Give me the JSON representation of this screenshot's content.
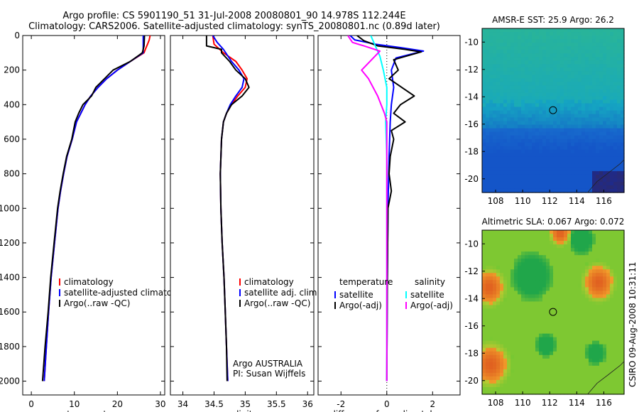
{
  "figure": {
    "title_line1": "Argo profile: CS 5901190_51 31-Jul-2008 20080801_90 14.978S 112.244E",
    "title_line2": "Climatology: CARS2006. Satellite-adjusted climatology: synTS_20080801.nc (0.89d later)",
    "side_text": "CSIRO 09-Aug-2008 10:31:11"
  },
  "chart_data": [
    {
      "id": "temperature-profile",
      "type": "line",
      "xlabel": "temperature",
      "ylabel": "",
      "xlim": [
        -2,
        31
      ],
      "ylim": [
        2080,
        0
      ],
      "y_reversed": true,
      "xticks": [
        0,
        10,
        20,
        30
      ],
      "yticks": [
        0,
        200,
        400,
        600,
        800,
        1000,
        1200,
        1400,
        1600,
        1800,
        2000
      ],
      "grid": false,
      "legend": {
        "position": "lower-right",
        "entries": [
          "climatology",
          "satellite-adjusted climatology",
          "Argo(..raw -QC)"
        ]
      },
      "series": [
        {
          "name": "climatology",
          "color": "#ff0000",
          "points": [
            [
              27.6,
              0
            ],
            [
              27.4,
              25
            ],
            [
              27.0,
              50
            ],
            [
              26.5,
              80
            ],
            [
              26.2,
              100
            ],
            [
              23,
              150
            ],
            [
              20,
              200
            ],
            [
              17.5,
              250
            ],
            [
              15.5,
              300
            ],
            [
              13.8,
              350
            ],
            [
              12.5,
              400
            ],
            [
              11.5,
              450
            ],
            [
              10.5,
              500
            ],
            [
              9.5,
              600
            ],
            [
              8.3,
              700
            ],
            [
              7.5,
              800
            ],
            [
              6.8,
              900
            ],
            [
              6.2,
              1000
            ],
            [
              5.4,
              1200
            ],
            [
              4.6,
              1400
            ],
            [
              4.0,
              1600
            ],
            [
              3.5,
              1800
            ],
            [
              3.0,
              2000
            ]
          ]
        },
        {
          "name": "satellite-adjusted climatology",
          "color": "#0000ff",
          "points": [
            [
              26.0,
              0
            ],
            [
              26.0,
              50
            ],
            [
              26.0,
              100
            ],
            [
              23,
              150
            ],
            [
              20,
              200
            ],
            [
              17.5,
              250
            ],
            [
              15.5,
              300
            ],
            [
              13.8,
              350
            ],
            [
              12.5,
              400
            ],
            [
              11.5,
              450
            ],
            [
              10.5,
              500
            ],
            [
              9.5,
              600
            ],
            [
              8.3,
              700
            ],
            [
              7.5,
              800
            ],
            [
              6.8,
              900
            ],
            [
              6.2,
              1000
            ],
            [
              5.4,
              1200
            ],
            [
              4.6,
              1400
            ],
            [
              4.0,
              1600
            ],
            [
              3.5,
              1800
            ],
            [
              3.0,
              2000
            ]
          ]
        },
        {
          "name": "Argo(..raw -QC)",
          "color": "#000000",
          "points": [
            [
              26.3,
              0
            ],
            [
              26.2,
              60
            ],
            [
              25.8,
              100
            ],
            [
              23,
              150
            ],
            [
              19,
              200
            ],
            [
              17,
              250
            ],
            [
              15,
              300
            ],
            [
              14,
              350
            ],
            [
              12,
              400
            ],
            [
              11,
              450
            ],
            [
              10.2,
              500
            ],
            [
              9.4,
              600
            ],
            [
              8.2,
              700
            ],
            [
              7.4,
              800
            ],
            [
              6.7,
              900
            ],
            [
              6.1,
              1000
            ],
            [
              5.3,
              1200
            ],
            [
              4.5,
              1400
            ],
            [
              3.9,
              1600
            ],
            [
              3.2,
              1800
            ],
            [
              2.6,
              2000
            ]
          ]
        }
      ]
    },
    {
      "id": "salinity-profile",
      "type": "line",
      "xlabel": "salinity",
      "ylabel": "",
      "xlim": [
        33.8,
        36.1
      ],
      "ylim": [
        2080,
        0
      ],
      "y_reversed": true,
      "xticks": [
        34,
        34.5,
        35,
        35.5,
        36
      ],
      "yticks": [
        0,
        200,
        400,
        600,
        800,
        1000,
        1200,
        1400,
        1600,
        1800,
        2000
      ],
      "grid": false,
      "legend": {
        "position": "lower-right",
        "entries": [
          "climatology",
          "satellite adj. clim.",
          "Argo(..raw -QC)"
        ]
      },
      "annotation": [
        "Argo AUSTRALIA",
        "PI: Susan Wijffels"
      ],
      "series": [
        {
          "name": "climatology",
          "color": "#ff0000",
          "points": [
            [
              34.48,
              0
            ],
            [
              34.5,
              50
            ],
            [
              34.65,
              100
            ],
            [
              34.85,
              150
            ],
            [
              34.95,
              200
            ],
            [
              35.03,
              250
            ],
            [
              35.0,
              300
            ],
            [
              34.88,
              350
            ],
            [
              34.78,
              400
            ],
            [
              34.7,
              450
            ],
            [
              34.65,
              500
            ],
            [
              34.62,
              600
            ],
            [
              34.6,
              800
            ],
            [
              34.61,
              1000
            ],
            [
              34.63,
              1200
            ],
            [
              34.66,
              1400
            ],
            [
              34.68,
              1600
            ],
            [
              34.7,
              1800
            ],
            [
              34.72,
              2000
            ]
          ]
        },
        {
          "name": "satellite adj. clim.",
          "color": "#0000ff",
          "points": [
            [
              34.48,
              0
            ],
            [
              34.55,
              40
            ],
            [
              34.65,
              80
            ],
            [
              34.78,
              150
            ],
            [
              34.9,
              200
            ],
            [
              34.98,
              250
            ],
            [
              34.95,
              300
            ],
            [
              34.85,
              350
            ],
            [
              34.76,
              400
            ],
            [
              34.7,
              450
            ],
            [
              34.65,
              500
            ],
            [
              34.62,
              600
            ],
            [
              34.6,
              800
            ],
            [
              34.61,
              1000
            ],
            [
              34.63,
              1200
            ],
            [
              34.66,
              1400
            ],
            [
              34.68,
              1600
            ],
            [
              34.7,
              1800
            ],
            [
              34.72,
              2000
            ]
          ]
        },
        {
          "name": "Argo(..raw -QC)",
          "color": "#000000",
          "points": [
            [
              34.38,
              0
            ],
            [
              34.38,
              60
            ],
            [
              34.62,
              80
            ],
            [
              34.62,
              100
            ],
            [
              34.75,
              150
            ],
            [
              34.85,
              200
            ],
            [
              35.0,
              250
            ],
            [
              35.06,
              300
            ],
            [
              34.95,
              350
            ],
            [
              34.78,
              400
            ],
            [
              34.7,
              450
            ],
            [
              34.65,
              500
            ],
            [
              34.62,
              600
            ],
            [
              34.6,
              800
            ],
            [
              34.61,
              1000
            ],
            [
              34.63,
              1200
            ],
            [
              34.66,
              1400
            ],
            [
              34.68,
              1600
            ],
            [
              34.7,
              1800
            ],
            [
              34.71,
              2000
            ]
          ]
        }
      ]
    },
    {
      "id": "difference-profile",
      "type": "line",
      "xlabel": "difference from climatology",
      "ylabel": "",
      "xlim": [
        -3,
        3.2
      ],
      "ylim": [
        2080,
        0
      ],
      "y_reversed": true,
      "xticks": [
        -2,
        0,
        2
      ],
      "yticks": [
        0,
        200,
        400,
        600,
        800,
        1000,
        1200,
        1400,
        1600,
        1800,
        2000
      ],
      "grid": false,
      "zero_reference_line": true,
      "legend": {
        "position": "lower",
        "columns": [
          {
            "heading": "temperature",
            "entries": [
              "satellite",
              "Argo(-adj)"
            ]
          },
          {
            "heading": "salinity",
            "entries": [
              "satellite",
              "Argo(-adj)"
            ]
          }
        ]
      },
      "series": [
        {
          "name": "temperature satellite",
          "color": "#0000ff",
          "points": [
            [
              -1.6,
              0
            ],
            [
              -1.4,
              25
            ],
            [
              -0.5,
              50
            ],
            [
              0.6,
              70
            ],
            [
              1.6,
              90
            ],
            [
              0.4,
              130
            ],
            [
              0.2,
              200
            ],
            [
              0.3,
              300
            ],
            [
              0.2,
              400
            ],
            [
              0.15,
              500
            ],
            [
              0.1,
              700
            ],
            [
              0.05,
              1000
            ],
            [
              0.02,
              1500
            ],
            [
              0.0,
              2000
            ]
          ]
        },
        {
          "name": "temperature Argo(-adj)",
          "color": "#000000",
          "points": [
            [
              -1.3,
              0
            ],
            [
              -1.0,
              30
            ],
            [
              -0.4,
              60
            ],
            [
              0.8,
              80
            ],
            [
              1.5,
              95
            ],
            [
              0.3,
              140
            ],
            [
              0.5,
              200
            ],
            [
              0.1,
              250
            ],
            [
              1.2,
              350
            ],
            [
              0.6,
              400
            ],
            [
              0.3,
              450
            ],
            [
              0.8,
              500
            ],
            [
              0.2,
              550
            ],
            [
              0.3,
              600
            ],
            [
              0.15,
              700
            ],
            [
              0.1,
              800
            ],
            [
              0.2,
              900
            ],
            [
              0.05,
              1000
            ],
            [
              0.02,
              1500
            ],
            [
              0.0,
              2000
            ]
          ]
        },
        {
          "name": "salinity satellite",
          "color": "#00ffff",
          "points": [
            [
              -0.7,
              0
            ],
            [
              -0.5,
              60
            ],
            [
              -0.3,
              120
            ],
            [
              -0.15,
              200
            ],
            [
              0.0,
              300
            ],
            [
              0.0,
              400
            ],
            [
              -0.05,
              500
            ],
            [
              0.0,
              700
            ],
            [
              0.0,
              1000
            ],
            [
              0.0,
              1500
            ],
            [
              0.0,
              2000
            ]
          ]
        },
        {
          "name": "salinity Argo(-adj)",
          "color": "#ff00ff",
          "points": [
            [
              -1.7,
              0
            ],
            [
              -1.5,
              40
            ],
            [
              -1.0,
              60
            ],
            [
              -0.3,
              90
            ],
            [
              -1.1,
              200
            ],
            [
              -0.8,
              250
            ],
            [
              -0.4,
              350
            ],
            [
              -0.1,
              450
            ],
            [
              0.0,
              500
            ],
            [
              0.0,
              700
            ],
            [
              0.0,
              1000
            ],
            [
              0.0,
              1500
            ],
            [
              0.0,
              2000
            ]
          ]
        }
      ]
    },
    {
      "id": "amsr-sst-map",
      "type": "heatmap",
      "title": "AMSR-E SST: 25.9 Argo: 26.2",
      "xlim": [
        107,
        117.5
      ],
      "ylim": [
        -21,
        -9
      ],
      "xticks": [
        108,
        110,
        112,
        114,
        116
      ],
      "yticks": [
        -10,
        -12,
        -14,
        -16,
        -18,
        -20
      ],
      "marker": {
        "lon": 112.244,
        "lat": -14.978
      },
      "colors": {
        "northwest": "#19b2a4",
        "north": "#28b49a",
        "center": "#15a7c2",
        "south": "#1455c8",
        "coast": "#1f2a8a"
      }
    },
    {
      "id": "altimetric-sla-map",
      "type": "heatmap",
      "title": "Altimetric SLA: 0.067 Argo: 0.072",
      "xlim": [
        107,
        117.5
      ],
      "ylim": [
        -21,
        -9
      ],
      "xticks": [
        108,
        110,
        112,
        114,
        116
      ],
      "yticks": [
        -10,
        -12,
        -14,
        -16,
        -18,
        -20
      ],
      "marker": {
        "lon": 112.244,
        "lat": -14.978
      },
      "colors": {
        "background": "#7ec832",
        "low": "#20a64a",
        "high": "#f09a2a",
        "peak": "#e06020"
      }
    }
  ]
}
